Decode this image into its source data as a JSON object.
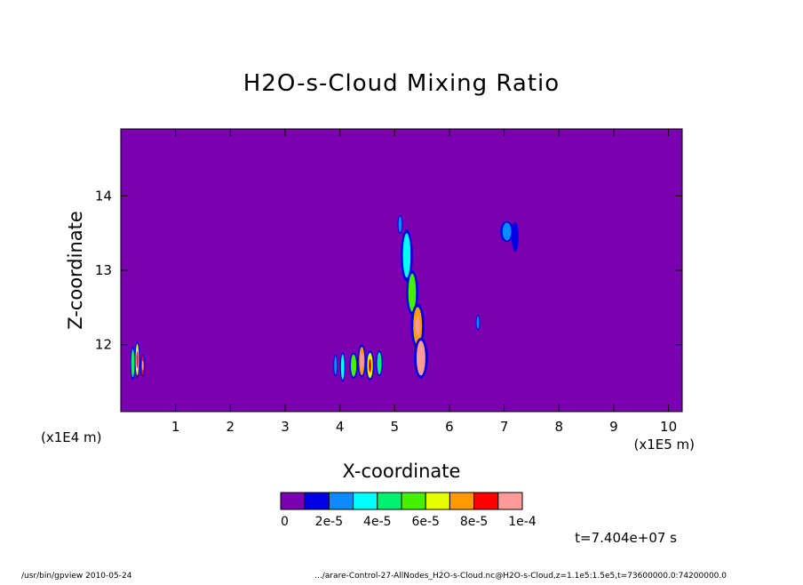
{
  "chart_data": {
    "type": "heatmap",
    "title": "H2O-s-Cloud Mixing Ratio",
    "xlabel": "X-coordinate",
    "ylabel": "Z-coordinate",
    "x_unit": "(x1E5 m)",
    "y_unit": "(x1E4 m)",
    "x_range": [
      0,
      10.25
    ],
    "y_range": [
      11.1,
      14.9
    ],
    "x_ticks": [
      "1",
      "2",
      "3",
      "4",
      "5",
      "6",
      "7",
      "8",
      "9",
      "10"
    ],
    "y_ticks": [
      "12",
      "13",
      "14"
    ],
    "x_tick_values": [
      1,
      2,
      3,
      4,
      5,
      6,
      7,
      8,
      9,
      10
    ],
    "y_tick_values": [
      12,
      13,
      14
    ],
    "background_color": "#7a00b0",
    "colorbar": {
      "colors": [
        "#7a00b0",
        "#0000e6",
        "#0a8cff",
        "#00ffff",
        "#00f070",
        "#46f000",
        "#e6ff00",
        "#ff9a00",
        "#ff0000",
        "#ff9a9a"
      ],
      "labels": [
        "0",
        "2e-5",
        "4e-5",
        "6e-5",
        "8e-5",
        "1e-4"
      ]
    },
    "features": [
      {
        "x": 0.22,
        "y": 11.75,
        "w": 0.03,
        "h": 0.45,
        "value": 4e-05
      },
      {
        "x": 0.3,
        "y": 11.8,
        "w": 0.03,
        "h": 0.5,
        "value": 6e-05
      },
      {
        "x": 0.4,
        "y": 11.72,
        "w": 0.03,
        "h": 0.3,
        "value": 8e-05
      },
      {
        "x": 3.92,
        "y": 11.72,
        "w": 0.02,
        "h": 0.3,
        "value": 2e-05
      },
      {
        "x": 4.05,
        "y": 11.7,
        "w": 0.03,
        "h": 0.4,
        "value": 3e-05
      },
      {
        "x": 4.25,
        "y": 11.72,
        "w": 0.05,
        "h": 0.35,
        "value": 5e-05
      },
      {
        "x": 4.4,
        "y": 11.78,
        "w": 0.05,
        "h": 0.45,
        "value": 7e-05
      },
      {
        "x": 4.55,
        "y": 11.72,
        "w": 0.05,
        "h": 0.4,
        "value": 6e-05
      },
      {
        "x": 4.72,
        "y": 11.75,
        "w": 0.04,
        "h": 0.35,
        "value": 4e-05
      },
      {
        "x": 5.1,
        "y": 13.62,
        "w": 0.03,
        "h": 0.25,
        "value": 2e-05
      },
      {
        "x": 5.22,
        "y": 13.2,
        "w": 0.07,
        "h": 0.7,
        "value": 3e-05
      },
      {
        "x": 5.32,
        "y": 12.7,
        "w": 0.07,
        "h": 0.6,
        "value": 5e-05
      },
      {
        "x": 5.42,
        "y": 12.25,
        "w": 0.08,
        "h": 0.6,
        "value": 7e-05
      },
      {
        "x": 5.48,
        "y": 11.82,
        "w": 0.08,
        "h": 0.55,
        "value": 0.0001
      },
      {
        "x": 6.52,
        "y": 12.3,
        "w": 0.02,
        "h": 0.2,
        "value": 2e-05
      },
      {
        "x": 7.05,
        "y": 13.52,
        "w": 0.08,
        "h": 0.28,
        "value": 2e-05
      },
      {
        "x": 7.2,
        "y": 13.45,
        "w": 0.04,
        "h": 0.4,
        "value": 1e-05
      }
    ],
    "time_label": "t=7.404e+07 s",
    "footer_left": "/usr/bin/gpview  2010-05-24",
    "footer_right": ".../arare-Control-27-AllNodes_H2O-s-Cloud.nc@H2O-s-Cloud,z=1.1e5:1.5e5,t=73600000.0:74200000.0"
  }
}
